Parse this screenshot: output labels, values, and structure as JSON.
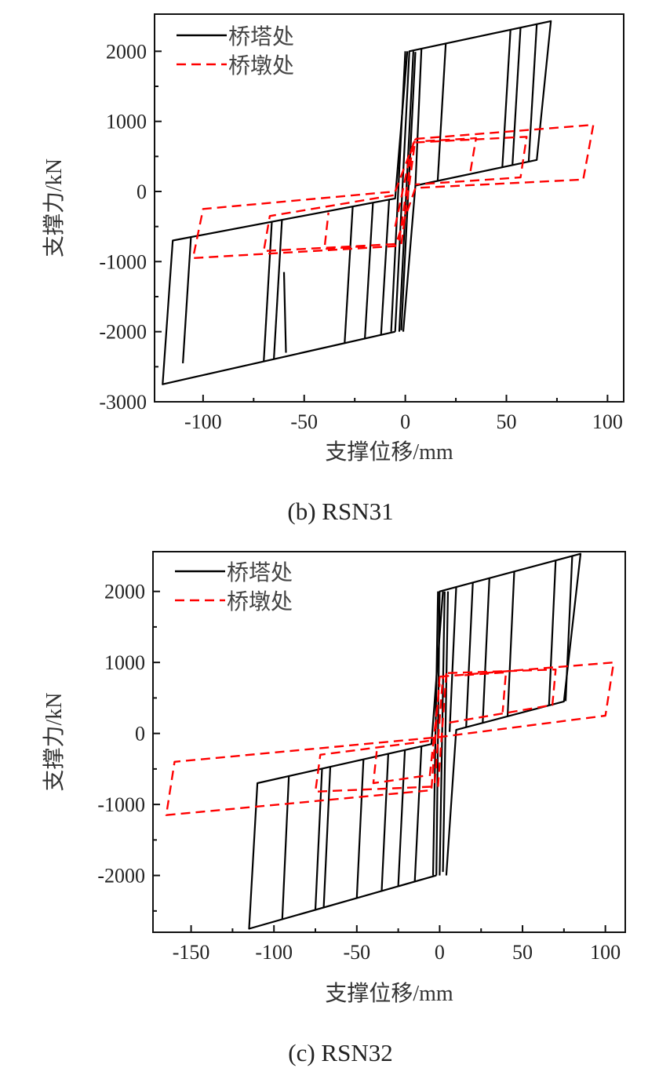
{
  "chart_data": [
    {
      "type": "line",
      "caption": "(b) RSN31",
      "xlabel": "支撑位移/mm",
      "ylabel": "支撑力/kN",
      "xlim": [
        -124,
        108
      ],
      "ylim": [
        -3000,
        2530
      ],
      "xticks": [
        -100,
        -50,
        0,
        50,
        100
      ],
      "xtick_labels": [
        "-100",
        "-50",
        "0",
        "50",
        "100"
      ],
      "yticks": [
        2000,
        1000,
        0,
        -1000,
        -2000,
        -3000
      ],
      "ytick_labels": [
        "2000",
        "1000",
        "0",
        "-1000",
        "-2000",
        "-3000"
      ],
      "grid": false,
      "legend_position": "top-left",
      "series": [
        {
          "name": "桥塔处",
          "color": "#000000",
          "style": "solid",
          "paths": [
            [
              [
                -5,
                -2000
              ],
              [
                2,
                2000
              ],
              [
                72,
                2430
              ],
              [
                65,
                450
              ],
              [
                5,
                84
              ],
              [
                -1,
                -2000
              ]
            ],
            [
              [
                -5,
                -2000
              ],
              [
                -120,
                -2750
              ],
              [
                -115,
                -700
              ],
              [
                -5,
                -100
              ],
              [
                1,
                2000
              ]
            ],
            [
              [
                -3,
                -2000
              ],
              [
                4,
                2000
              ]
            ],
            [
              [
                -7,
                -2000
              ],
              [
                0,
                2000
              ]
            ],
            [
              [
                -2,
                -1980
              ],
              [
                5,
                1990
              ]
            ],
            [
              [
                52,
                2307
              ],
              [
                48,
                346
              ]
            ],
            [
              [
                57,
                2338
              ],
              [
                53,
                377
              ]
            ],
            [
              [
                65,
                2387
              ],
              [
                61,
                426
              ]
            ],
            [
              [
                20,
                2110
              ],
              [
                16,
                151
              ]
            ],
            [
              [
                8,
                2037
              ],
              [
                5,
                84
              ]
            ],
            [
              [
                -110,
                -2450
              ],
              [
                -106,
                -650
              ]
            ],
            [
              [
                -70,
                -2424
              ],
              [
                -66,
                -432
              ]
            ],
            [
              [
                -65,
                -2391
              ],
              [
                -61,
                -405
              ]
            ],
            [
              [
                -60,
                -1150
              ],
              [
                -59,
                -2300
              ]
            ],
            [
              [
                -30,
                -2163
              ],
              [
                -26,
                -214
              ]
            ],
            [
              [
                -20,
                -2098
              ],
              [
                -16,
                -160
              ]
            ],
            [
              [
                -12,
                -2046
              ],
              [
                -8,
                -116
              ]
            ]
          ]
        },
        {
          "name": "桥墩处",
          "color": "#ff0000",
          "style": "dashed",
          "paths": [
            [
              [
                5,
                750
              ],
              [
                93,
                950
              ],
              [
                88,
                170
              ],
              [
                5,
                50
              ],
              [
                -5,
                -780
              ],
              [
                -105,
                -950
              ],
              [
                -100,
                -250
              ],
              [
                -5,
                0
              ],
              [
                5,
                750
              ]
            ],
            [
              [
                5,
                700
              ],
              [
                60,
                780
              ],
              [
                57,
                200
              ],
              [
                5,
                100
              ]
            ],
            [
              [
                -5,
                -750
              ],
              [
                -70,
                -850
              ],
              [
                -67,
                -350
              ],
              [
                -5,
                -50
              ]
            ],
            [
              [
                10,
                720
              ],
              [
                35,
                760
              ],
              [
                32,
                250
              ]
            ],
            [
              [
                -20,
                -780
              ],
              [
                -40,
                -820
              ],
              [
                -38,
                -300
              ]
            ],
            [
              [
                -3,
                -700
              ],
              [
                4,
                700
              ]
            ],
            [
              [
                -5,
                -500
              ],
              [
                3,
                600
              ]
            ],
            [
              [
                -2,
                -750
              ],
              [
                5,
                750
              ]
            ]
          ]
        }
      ]
    },
    {
      "type": "line",
      "caption": "(c) RSN32",
      "xlabel": "支撑位移/mm",
      "ylabel": "支撑力/kN",
      "xlim": [
        -173,
        112
      ],
      "ylim": [
        -2800,
        2560
      ],
      "xticks": [
        -150,
        -100,
        -50,
        0,
        50,
        100
      ],
      "xtick_labels": [
        "-150",
        "-100",
        "-50",
        "0",
        "50",
        "100"
      ],
      "yticks": [
        2000,
        1000,
        0,
        -1000,
        -2000
      ],
      "ytick_labels": [
        "2000",
        "1000",
        "0",
        "-1000",
        "-2000"
      ],
      "grid": false,
      "legend_position": "top-left",
      "series": [
        {
          "name": "桥塔处",
          "color": "#000000",
          "style": "solid",
          "paths": [
            [
              [
                -2,
                -2000
              ],
              [
                0,
                2000
              ],
              [
                85,
                2530
              ],
              [
                75,
                450
              ],
              [
                10,
                50
              ],
              [
                4,
                -2000
              ]
            ],
            [
              [
                -2,
                -2000
              ],
              [
                -115,
                -2750
              ],
              [
                -110,
                -700
              ],
              [
                -5,
                -150
              ],
              [
                2,
                2000
              ]
            ],
            [
              [
                -4,
                -2000
              ],
              [
                -1,
                2000
              ]
            ],
            [
              [
                0,
                -2000
              ],
              [
                3,
                2000
              ]
            ],
            [
              [
                2,
                -1950
              ],
              [
                5,
                2000
              ]
            ],
            [
              [
                80,
                2499
              ],
              [
                76,
                456
              ]
            ],
            [
              [
                70,
                2437
              ],
              [
                66,
                394
              ]
            ],
            [
              [
                45,
                2281
              ],
              [
                41,
                239
              ]
            ],
            [
              [
                30,
                2187
              ],
              [
                26,
                146
              ]
            ],
            [
              [
                20,
                2125
              ],
              [
                16,
                84
              ]
            ],
            [
              [
                10,
                2062
              ],
              [
                6,
                22
              ]
            ],
            [
              [
                -95,
                -2618
              ],
              [
                -91,
                -601
              ]
            ],
            [
              [
                -75,
                -2485
              ],
              [
                -71,
                -496
              ]
            ],
            [
              [
                -70,
                -2452
              ],
              [
                -66,
                -470
              ]
            ],
            [
              [
                -50,
                -2319
              ],
              [
                -46,
                -365
              ]
            ],
            [
              [
                -35,
                -2219
              ],
              [
                -31,
                -286
              ]
            ],
            [
              [
                -25,
                -2153
              ],
              [
                -21,
                -234
              ]
            ],
            [
              [
                -15,
                -2086
              ],
              [
                -11,
                -181
              ]
            ]
          ]
        },
        {
          "name": "桥墩处",
          "color": "#ff0000",
          "style": "dashed",
          "paths": [
            [
              [
                0,
                800
              ],
              [
                105,
                1000
              ],
              [
                100,
                250
              ],
              [
                0,
                -50
              ],
              [
                -160,
                -400
              ],
              [
                -165,
                -1150
              ],
              [
                -5,
                -800
              ],
              [
                0,
                800
              ]
            ],
            [
              [
                5,
                850
              ],
              [
                70,
                900
              ],
              [
                68,
                400
              ],
              [
                5,
                150
              ]
            ],
            [
              [
                -5,
                -750
              ],
              [
                -75,
                -820
              ],
              [
                -72,
                -300
              ],
              [
                -5,
                -100
              ]
            ],
            [
              [
                -10,
                -600
              ],
              [
                -40,
                -700
              ],
              [
                -38,
                -250
              ]
            ],
            [
              [
                15,
                820
              ],
              [
                40,
                860
              ],
              [
                38,
                300
              ]
            ],
            [
              [
                -3,
                -700
              ],
              [
                2,
                800
              ]
            ],
            [
              [
                -6,
                -600
              ],
              [
                0,
                700
              ]
            ],
            [
              [
                -1,
                -750
              ],
              [
                4,
                850
              ]
            ]
          ]
        }
      ]
    }
  ]
}
